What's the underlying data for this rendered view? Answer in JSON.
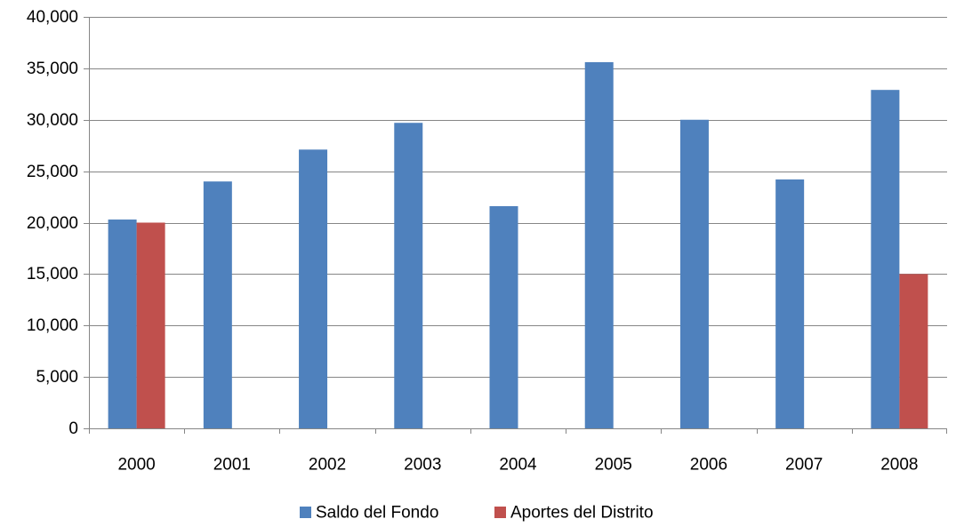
{
  "chart_data": {
    "type": "bar",
    "categories": [
      "2000",
      "2001",
      "2002",
      "2003",
      "2004",
      "2005",
      "2006",
      "2007",
      "2008"
    ],
    "series": [
      {
        "name": "Saldo del Fondo",
        "color": "#4F81BD",
        "values": [
          20300,
          24000,
          27100,
          29700,
          21600,
          35600,
          30000,
          24200,
          32900
        ]
      },
      {
        "name": "Aportes del Distrito",
        "color": "#C0504D",
        "values": [
          20000,
          null,
          null,
          null,
          null,
          null,
          null,
          null,
          15000
        ]
      }
    ],
    "ylim": [
      0,
      40000
    ],
    "yticks": [
      0,
      5000,
      10000,
      15000,
      20000,
      25000,
      30000,
      35000,
      40000
    ],
    "ytick_labels": [
      "0",
      "5,000",
      "10,000",
      "15,000",
      "20,000",
      "25,000",
      "30,000",
      "35,000",
      "40,000"
    ],
    "grid": true,
    "legend_position": "bottom",
    "title": "",
    "xlabel": "",
    "ylabel": ""
  }
}
